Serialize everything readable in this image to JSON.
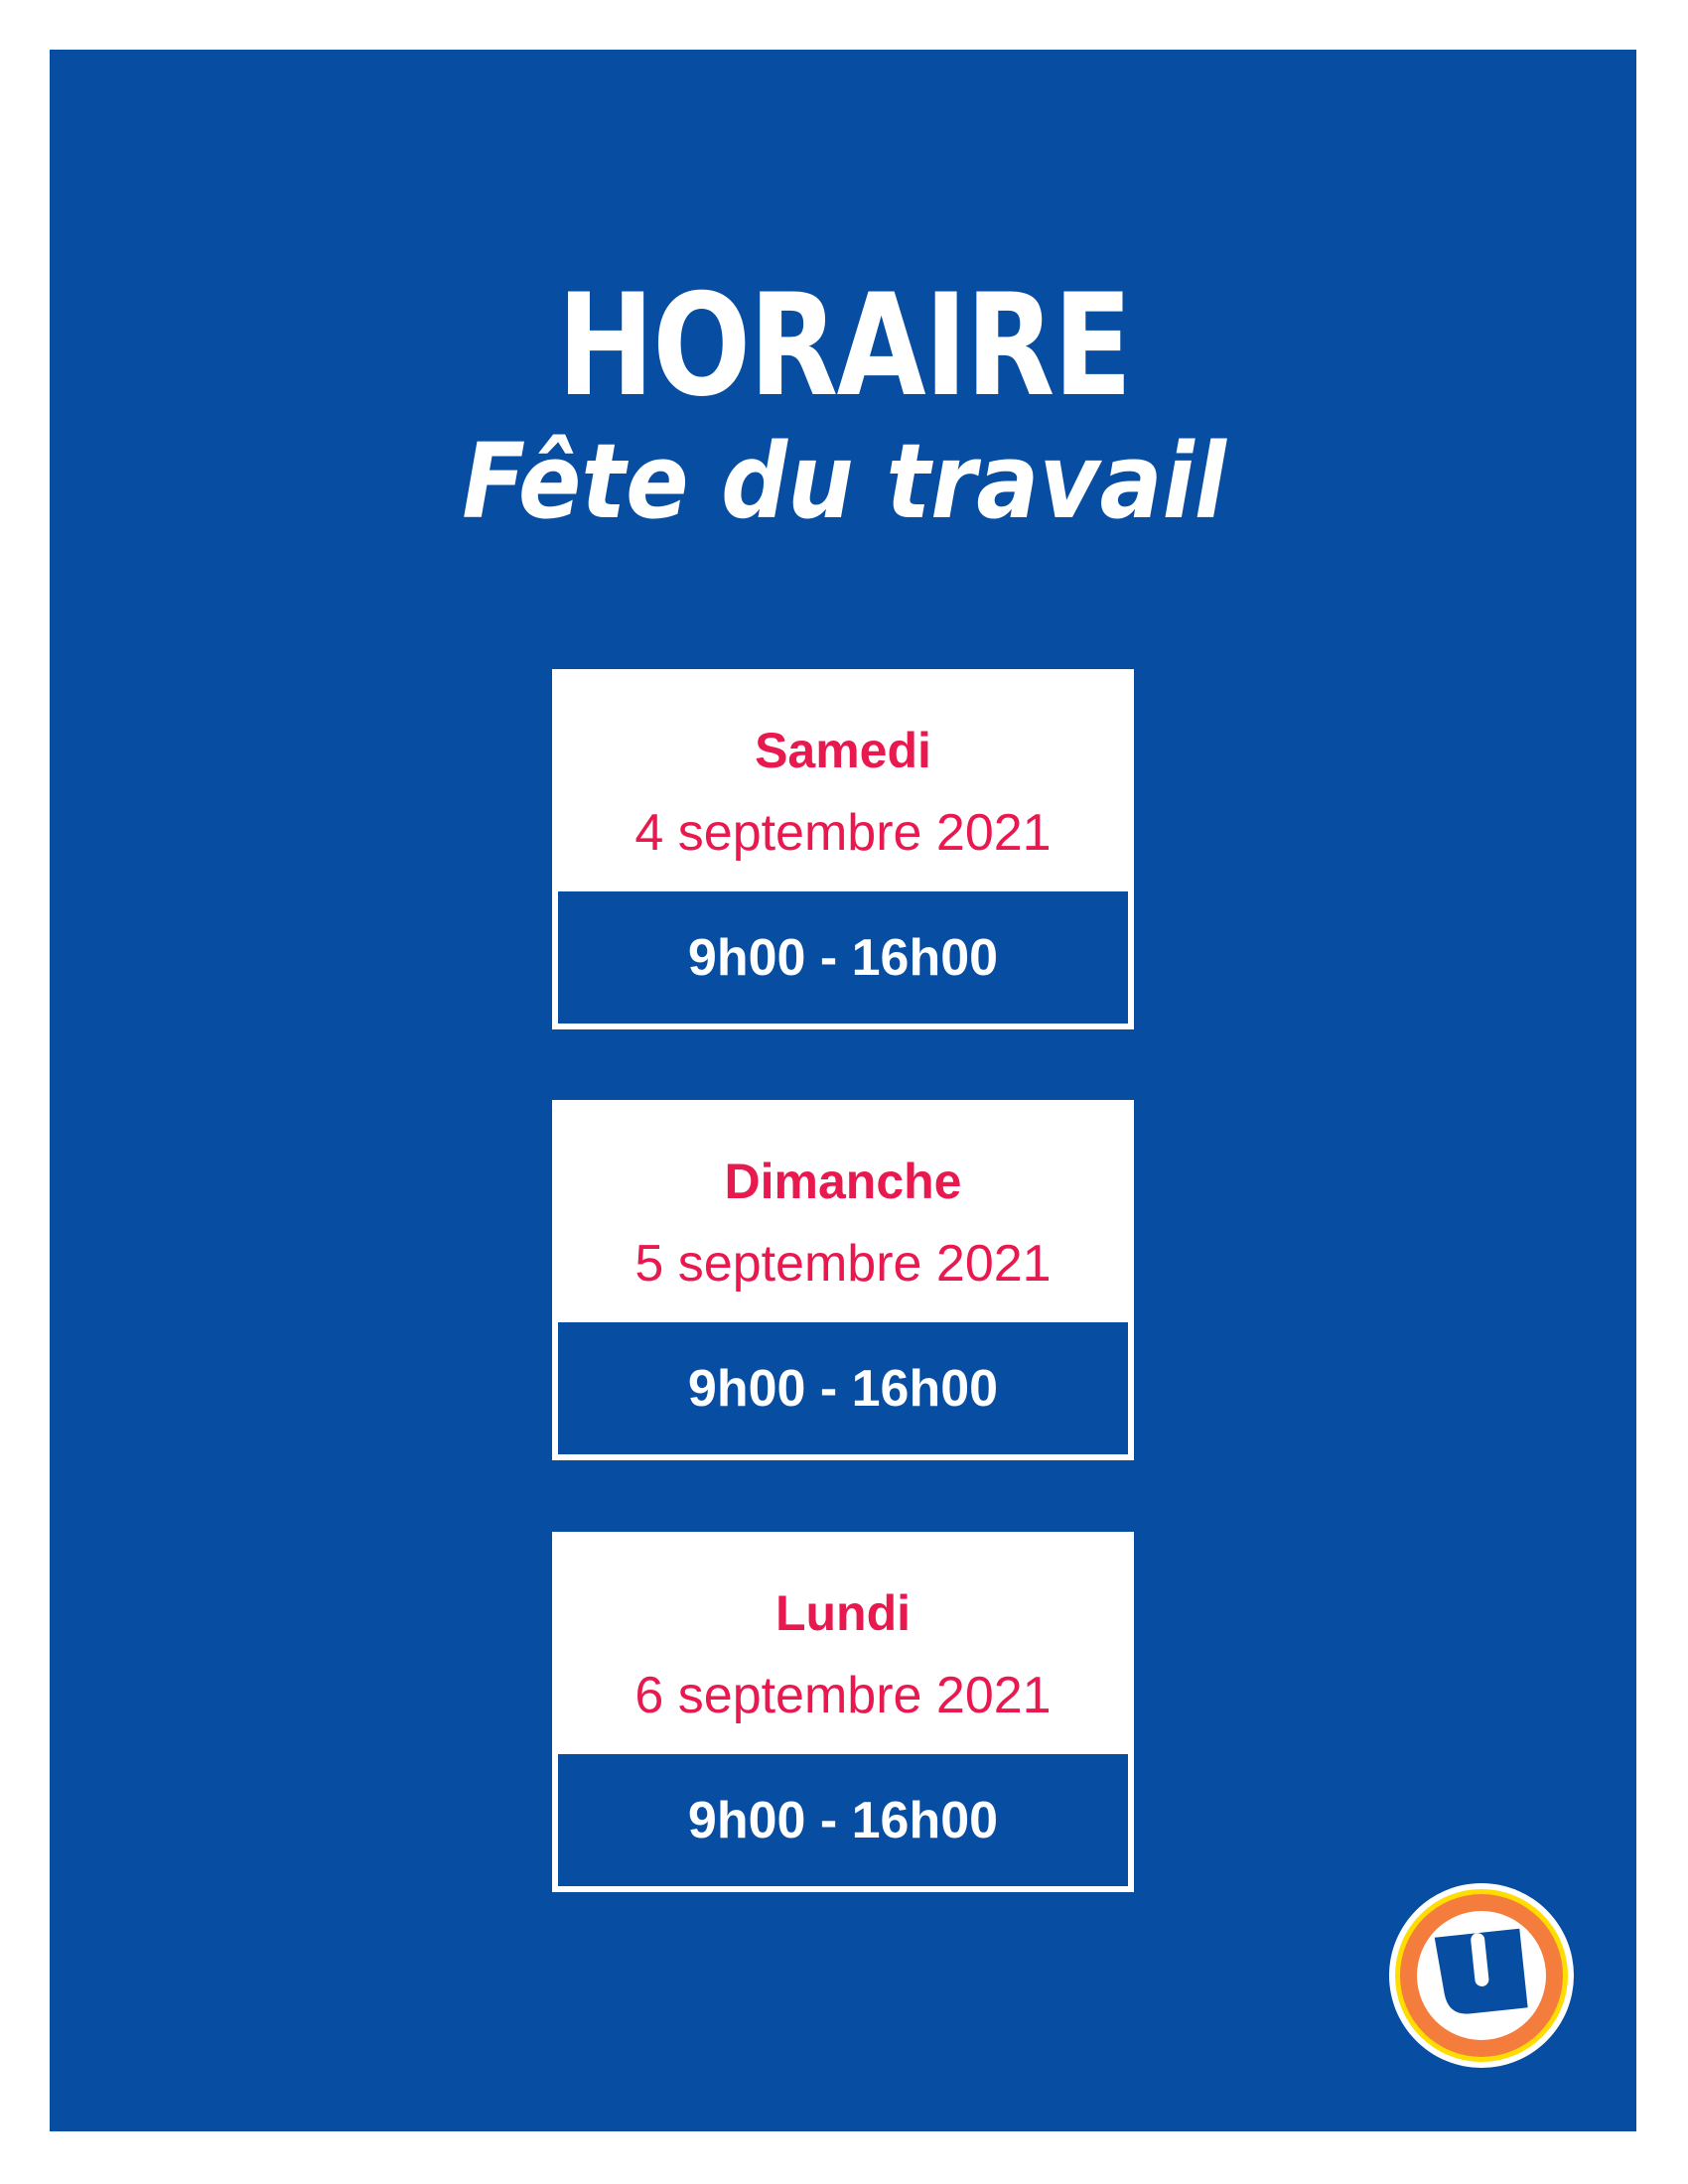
{
  "header": {
    "title": "HORAIRE",
    "subtitle": "Fête du travail"
  },
  "schedule": [
    {
      "day": "Samedi",
      "date": "4 septembre 2021",
      "hours": "9h00 - 16h00"
    },
    {
      "day": "Dimanche",
      "date": "5 septembre 2021",
      "hours": "9h00 - 16h00"
    },
    {
      "day": "Lundi",
      "date": "6 septembre 2021",
      "hours": "9h00 - 16h00"
    }
  ],
  "logo": {
    "icon": "uniprix-u-logo",
    "letter": "U"
  },
  "colors": {
    "background": "#074ea3",
    "accent": "#e8194f",
    "logo_orange": "#f47c3c",
    "logo_yellow": "#ffdd00"
  }
}
